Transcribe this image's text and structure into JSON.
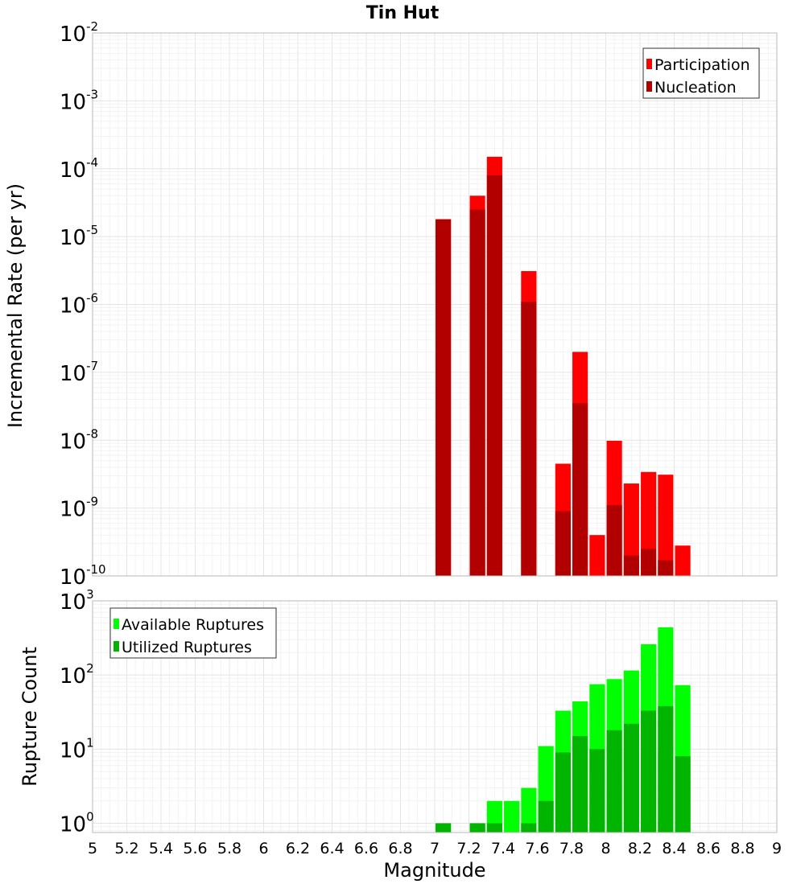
{
  "chart_data": [
    {
      "type": "bar",
      "title": "Tin Hut",
      "ylabel": "Incremental Rate (per yr)",
      "xlabel": "",
      "yscale": "log",
      "ylim": [
        1e-10,
        0.01
      ],
      "xlim": [
        5,
        9
      ],
      "bar_width": 0.09,
      "grid": true,
      "legend_position": "top-right",
      "series": [
        {
          "name": "Participation",
          "color": "#ff0000",
          "points": [
            {
              "x": 7.05,
              "y": 1.8e-05
            },
            {
              "x": 7.25,
              "y": 4e-05
            },
            {
              "x": 7.35,
              "y": 0.00015
            },
            {
              "x": 7.55,
              "y": 3.1e-06
            },
            {
              "x": 7.75,
              "y": 4.5e-09
            },
            {
              "x": 7.85,
              "y": 2e-07
            },
            {
              "x": 7.95,
              "y": 4e-10
            },
            {
              "x": 8.05,
              "y": 9.8e-09
            },
            {
              "x": 8.15,
              "y": 2.3e-09
            },
            {
              "x": 8.25,
              "y": 3.4e-09
            },
            {
              "x": 8.35,
              "y": 3.1e-09
            },
            {
              "x": 8.45,
              "y": 2.8e-10
            }
          ]
        },
        {
          "name": "Nucleation",
          "color": "#b20000",
          "points": [
            {
              "x": 7.05,
              "y": 1.8e-05
            },
            {
              "x": 7.25,
              "y": 2.5e-05
            },
            {
              "x": 7.35,
              "y": 8e-05
            },
            {
              "x": 7.55,
              "y": 1.1e-06
            },
            {
              "x": 7.75,
              "y": 9e-10
            },
            {
              "x": 7.85,
              "y": 3.5e-08
            },
            {
              "x": 8.05,
              "y": 1.1e-09
            },
            {
              "x": 8.15,
              "y": 2e-10
            },
            {
              "x": 8.25,
              "y": 2.5e-10
            },
            {
              "x": 8.35,
              "y": 1.7e-10
            }
          ]
        }
      ]
    },
    {
      "type": "bar",
      "title": "",
      "ylabel": "Rupture Count",
      "xlabel": "Magnitude",
      "yscale": "log",
      "ylim": [
        0.75,
        1000
      ],
      "xlim": [
        5,
        9
      ],
      "bar_width": 0.09,
      "grid": true,
      "legend_position": "top-left",
      "x_ticks": [
        "5",
        "5.2",
        "5.4",
        "5.6",
        "5.8",
        "6",
        "6.2",
        "6.4",
        "6.6",
        "6.8",
        "7",
        "7.2",
        "7.4",
        "7.6",
        "7.8",
        "8",
        "8.2",
        "8.4",
        "8.6",
        "8.8",
        "9"
      ],
      "series": [
        {
          "name": "Available Ruptures",
          "color": "#00ff00",
          "points": [
            {
              "x": 7.05,
              "y": 1
            },
            {
              "x": 7.25,
              "y": 1
            },
            {
              "x": 7.35,
              "y": 2
            },
            {
              "x": 7.45,
              "y": 2
            },
            {
              "x": 7.55,
              "y": 3
            },
            {
              "x": 7.65,
              "y": 11
            },
            {
              "x": 7.75,
              "y": 33
            },
            {
              "x": 7.85,
              "y": 44
            },
            {
              "x": 7.95,
              "y": 75
            },
            {
              "x": 8.05,
              "y": 88
            },
            {
              "x": 8.15,
              "y": 115
            },
            {
              "x": 8.25,
              "y": 260
            },
            {
              "x": 8.35,
              "y": 440
            },
            {
              "x": 8.45,
              "y": 73
            }
          ]
        },
        {
          "name": "Utilized Ruptures",
          "color": "#00b400",
          "points": [
            {
              "x": 7.05,
              "y": 1
            },
            {
              "x": 7.25,
              "y": 1
            },
            {
              "x": 7.35,
              "y": 1
            },
            {
              "x": 7.55,
              "y": 1
            },
            {
              "x": 7.65,
              "y": 2
            },
            {
              "x": 7.75,
              "y": 9
            },
            {
              "x": 7.85,
              "y": 15
            },
            {
              "x": 7.95,
              "y": 10
            },
            {
              "x": 8.05,
              "y": 18
            },
            {
              "x": 8.15,
              "y": 22
            },
            {
              "x": 8.25,
              "y": 33
            },
            {
              "x": 8.35,
              "y": 38
            },
            {
              "x": 8.45,
              "y": 8
            }
          ]
        }
      ]
    }
  ]
}
